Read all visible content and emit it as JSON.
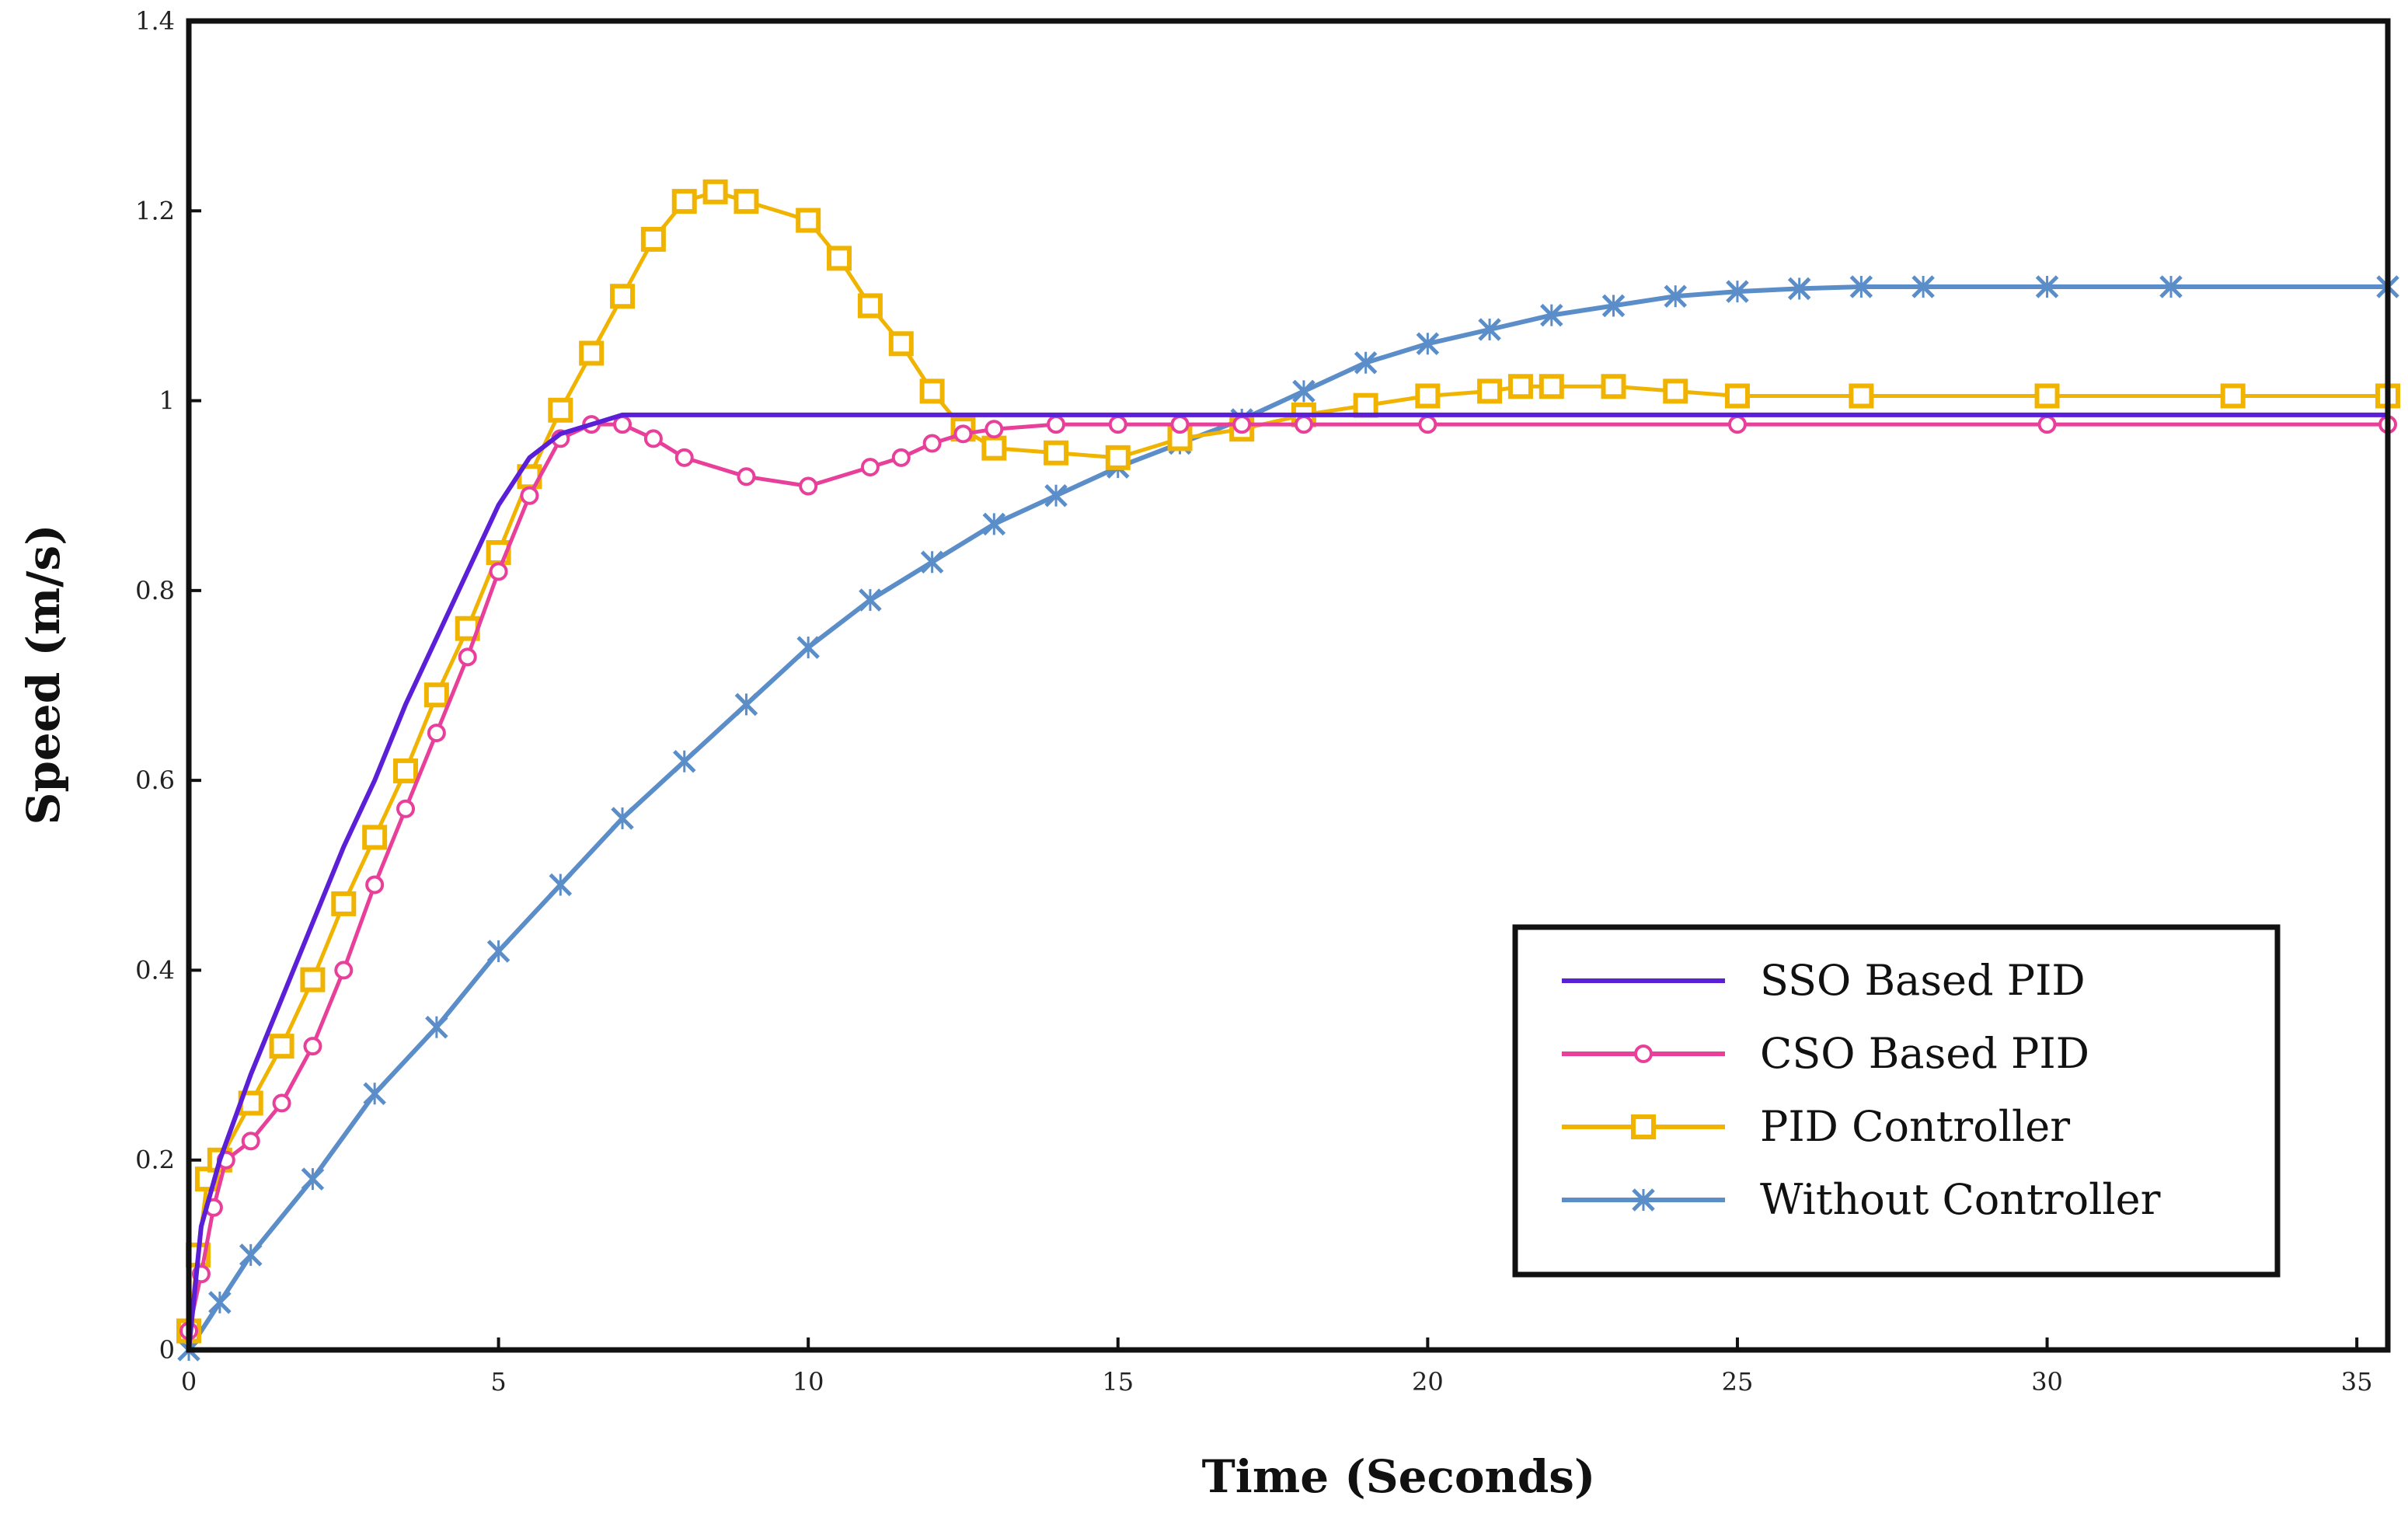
{
  "chart_data": {
    "type": "line",
    "title": "",
    "xlabel": "Time (Seconds)",
    "ylabel": "Speed (m/s)",
    "xlim": [
      0,
      35.5
    ],
    "ylim": [
      0,
      1.4
    ],
    "xticks": [
      0,
      5,
      10,
      15,
      20,
      25,
      30,
      35
    ],
    "yticks": [
      0,
      0.2,
      0.4,
      0.6,
      0.8,
      1,
      1.2,
      1.4
    ],
    "xtick_labels": [
      "0",
      "5",
      "10",
      "15",
      "20",
      "25",
      "30",
      "35"
    ],
    "ytick_labels": [
      "0",
      "0.2",
      "0.4",
      "0.6",
      "0.8",
      "1",
      "1.2",
      "1.4"
    ],
    "grid": false,
    "legend_position": "bottom-right",
    "series": [
      {
        "name": "SSO Based PID",
        "color": "#5a1fd6",
        "marker": "none",
        "x": [
          0,
          0.2,
          0.5,
          1,
          1.5,
          2,
          2.5,
          3,
          3.5,
          4,
          4.5,
          5,
          5.5,
          6,
          6.5,
          7,
          8,
          10,
          15,
          20,
          25,
          30,
          35.5
        ],
        "y": [
          0,
          0.13,
          0.2,
          0.29,
          0.37,
          0.45,
          0.53,
          0.6,
          0.68,
          0.75,
          0.82,
          0.89,
          0.94,
          0.965,
          0.975,
          0.985,
          0.985,
          0.985,
          0.985,
          0.985,
          0.985,
          0.985,
          0.985
        ]
      },
      {
        "name": "CSO Based PID",
        "color": "#e8409a",
        "marker": "circle",
        "x": [
          0,
          0.2,
          0.4,
          0.6,
          1,
          1.5,
          2,
          2.5,
          3,
          3.5,
          4,
          4.5,
          5,
          5.5,
          6,
          6.5,
          7,
          7.5,
          8,
          9,
          10,
          11,
          11.5,
          12,
          12.5,
          13,
          14,
          15,
          16,
          17,
          18,
          20,
          25,
          30,
          35.5
        ],
        "y": [
          0.02,
          0.08,
          0.15,
          0.2,
          0.22,
          0.26,
          0.32,
          0.4,
          0.49,
          0.57,
          0.65,
          0.73,
          0.82,
          0.9,
          0.96,
          0.975,
          0.975,
          0.96,
          0.94,
          0.92,
          0.91,
          0.93,
          0.94,
          0.955,
          0.965,
          0.97,
          0.975,
          0.975,
          0.975,
          0.975,
          0.975,
          0.975,
          0.975,
          0.975,
          0.975
        ]
      },
      {
        "name": "PID Controller",
        "color": "#f0b400",
        "marker": "square",
        "x": [
          0,
          0.15,
          0.3,
          0.5,
          1,
          1.5,
          2,
          2.5,
          3,
          3.5,
          4,
          4.5,
          5,
          5.5,
          6,
          6.5,
          7,
          7.5,
          8,
          8.5,
          9,
          10,
          10.5,
          11,
          11.5,
          12,
          12.5,
          13,
          14,
          15,
          16,
          17,
          18,
          19,
          20,
          21,
          21.5,
          22,
          23,
          24,
          25,
          27,
          30,
          33,
          35.5
        ],
        "y": [
          0.02,
          0.1,
          0.18,
          0.2,
          0.26,
          0.32,
          0.39,
          0.47,
          0.54,
          0.61,
          0.69,
          0.76,
          0.84,
          0.92,
          0.99,
          1.05,
          1.11,
          1.17,
          1.21,
          1.22,
          1.21,
          1.19,
          1.15,
          1.1,
          1.06,
          1.01,
          0.97,
          0.95,
          0.945,
          0.94,
          0.96,
          0.97,
          0.985,
          0.995,
          1.005,
          1.01,
          1.015,
          1.015,
          1.015,
          1.01,
          1.005,
          1.005,
          1.005,
          1.005,
          1.005
        ]
      },
      {
        "name": "Without Controller",
        "color": "#5b8ec9",
        "marker": "x",
        "x": [
          0,
          0.5,
          1,
          2,
          3,
          4,
          5,
          6,
          7,
          8,
          9,
          10,
          11,
          12,
          13,
          14,
          15,
          16,
          17,
          18,
          19,
          20,
          21,
          22,
          23,
          24,
          25,
          26,
          27,
          28,
          30,
          32,
          35.5
        ],
        "y": [
          0,
          0.05,
          0.1,
          0.18,
          0.27,
          0.34,
          0.42,
          0.49,
          0.56,
          0.62,
          0.68,
          0.74,
          0.79,
          0.83,
          0.87,
          0.9,
          0.93,
          0.955,
          0.98,
          1.01,
          1.04,
          1.06,
          1.075,
          1.09,
          1.1,
          1.11,
          1.115,
          1.118,
          1.12,
          1.12,
          1.12,
          1.12,
          1.12
        ]
      }
    ]
  }
}
